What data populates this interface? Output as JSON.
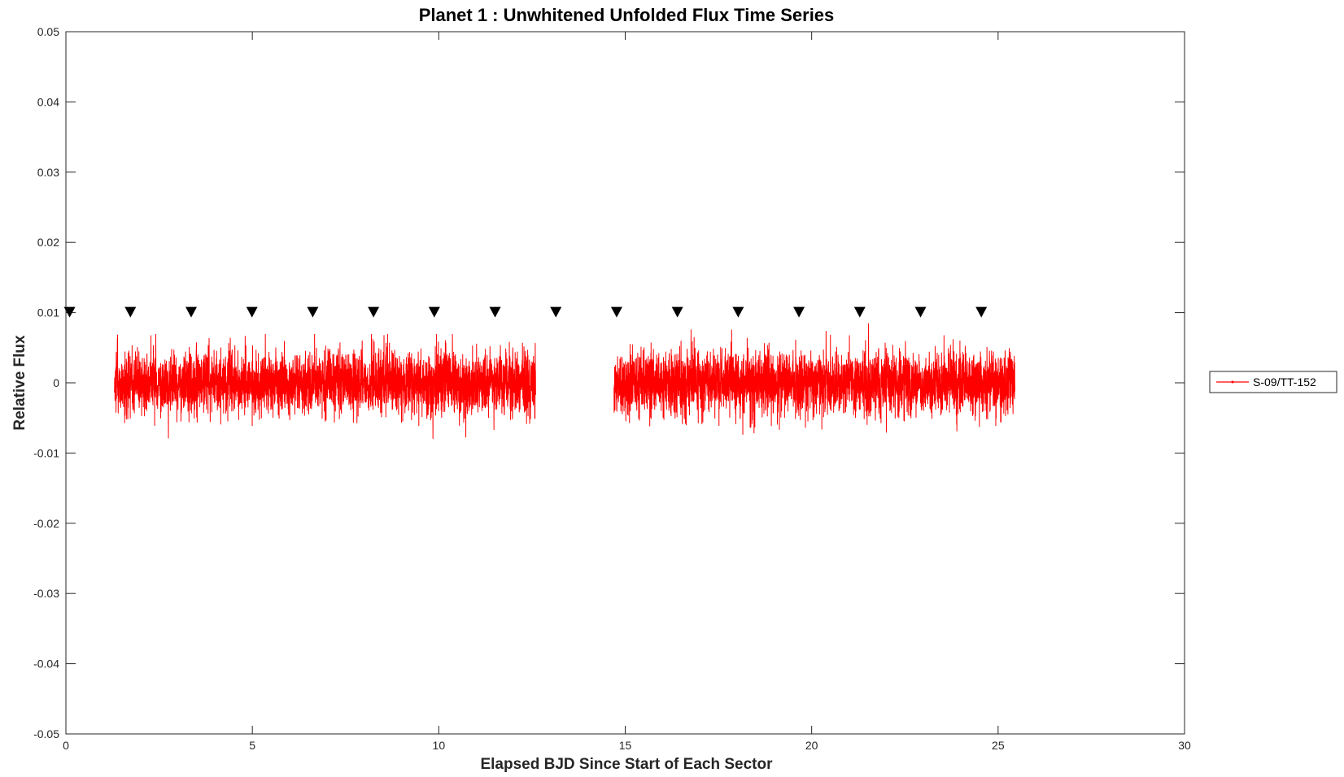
{
  "chart_data": {
    "type": "line",
    "title": "Planet 1 : Unwhitened Unfolded Flux Time Series",
    "xlabel": "Elapsed BJD Since Start of Each Sector",
    "ylabel": "Relative Flux",
    "xlim": [
      0,
      30
    ],
    "ylim": [
      -0.05,
      0.05
    ],
    "x_ticks": [
      0,
      5,
      10,
      15,
      20,
      25,
      30
    ],
    "x_tick_labels": [
      "0",
      "5",
      "10",
      "15",
      "20",
      "25",
      "30"
    ],
    "y_ticks": [
      -0.05,
      -0.04,
      -0.03,
      -0.02,
      -0.01,
      0,
      0.01,
      0.02,
      0.03,
      0.04,
      0.05
    ],
    "y_tick_labels": [
      "-0.05",
      "-0.04",
      "-0.03",
      "-0.02",
      "-0.01",
      "0",
      "0.01",
      "0.02",
      "0.03",
      "0.04",
      "0.05"
    ],
    "grid": false,
    "legend_position": "outside-right",
    "series": [
      {
        "name": "S-09/TT-152",
        "color": "#ff0000",
        "style": "line-with-point-markers",
        "segments": [
          {
            "x_start": 1.3,
            "x_end": 12.6,
            "center": 0.0,
            "typical_range": [
              -0.005,
              0.005
            ],
            "extremes": [
              -0.0081,
              0.0069
            ]
          },
          {
            "x_start": 14.7,
            "x_end": 25.45,
            "center": 0.0,
            "typical_range": [
              -0.005,
              0.005
            ],
            "extremes": [
              -0.0081,
              0.0087
            ]
          }
        ]
      },
      {
        "name": "transit markers",
        "color": "#000000",
        "marker": "downward-triangle",
        "y": 0.01,
        "x": [
          0.1,
          1.73,
          3.36,
          4.99,
          6.62,
          8.25,
          9.88,
          11.51,
          13.14,
          14.77,
          16.4,
          18.03,
          19.66,
          21.29,
          22.92,
          24.55
        ]
      }
    ]
  }
}
